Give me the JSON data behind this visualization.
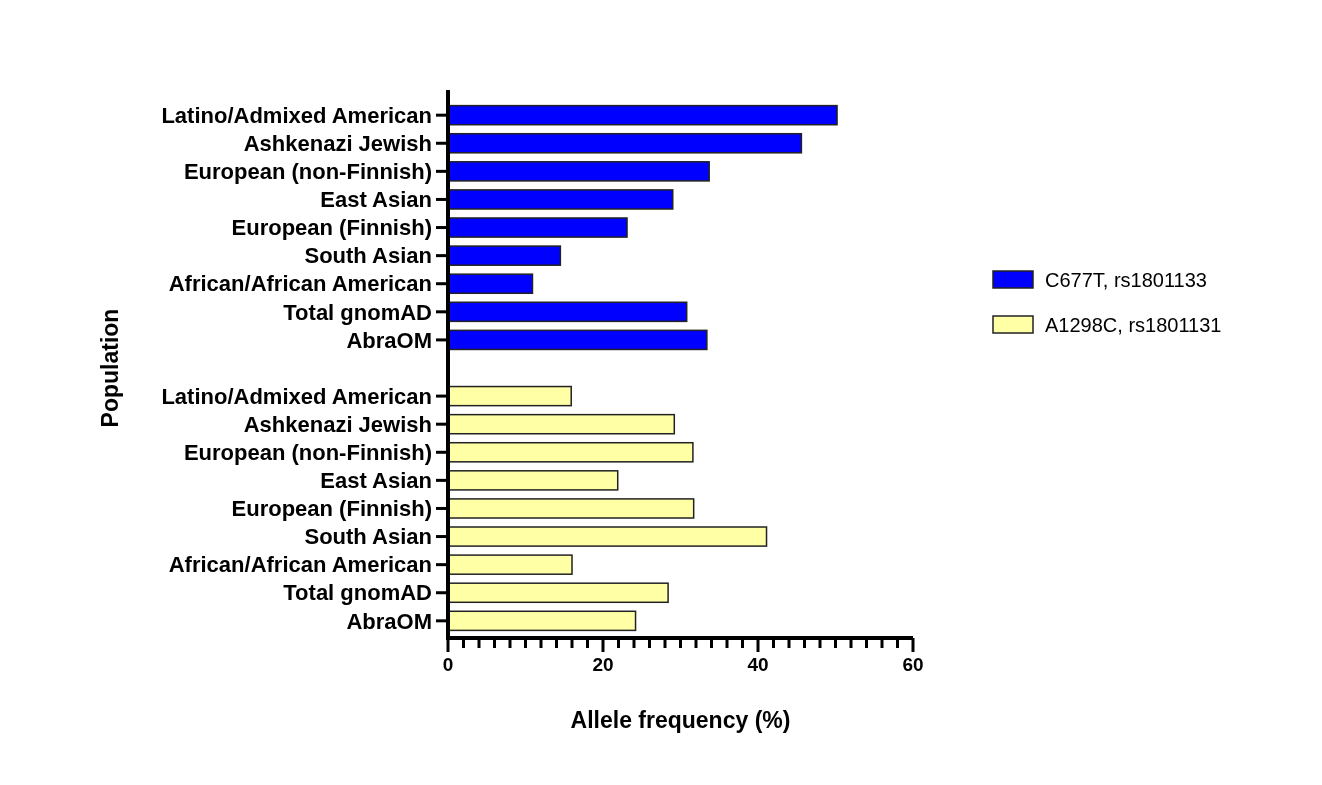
{
  "chart_data": {
    "type": "bar",
    "orientation": "horizontal",
    "categories": [
      "Latino/Admixed American",
      "Ashkenazi Jewish",
      "European (non-Finnish)",
      "East Asian",
      "European (Finnish)",
      "South Asian",
      "African/African American",
      "Total gnomAD",
      "AbraOM",
      null,
      "Latino/Admixed American",
      "Ashkenazi Jewish",
      "European (non-Finnish)",
      "East Asian",
      "European (Finnish)",
      "South Asian",
      "African/African American",
      "Total gnomAD",
      "AbraOM"
    ],
    "series": [
      {
        "name": "C677T, rs1801133",
        "color": "#0000ff",
        "values": [
          50.2,
          45.6,
          33.7,
          29.0,
          23.1,
          14.5,
          10.9,
          30.8,
          33.4,
          null,
          null,
          null,
          null,
          null,
          null,
          null,
          null,
          null,
          null
        ]
      },
      {
        "name": "A1298C, rs1801131",
        "color": "#ffffa6",
        "values": [
          null,
          null,
          null,
          null,
          null,
          null,
          null,
          null,
          null,
          null,
          15.9,
          29.2,
          31.6,
          21.9,
          31.7,
          41.1,
          16.0,
          28.4,
          24.2
        ]
      }
    ],
    "xlabel": "Allele frequency (%)",
    "ylabel": "Population",
    "xlim": [
      0,
      60
    ],
    "xticks": [
      0,
      {
        "value": 2,
        "label": null
      },
      {
        "value": 4,
        "label": null
      },
      {
        "value": 6,
        "label": null
      },
      {
        "value": 8,
        "label": null
      },
      {
        "value": 10,
        "label": null
      },
      {
        "value": 12,
        "label": null
      },
      {
        "value": 14,
        "label": null
      },
      {
        "value": 16,
        "label": null
      },
      {
        "value": 18,
        "label": null
      },
      20,
      {
        "value": 22,
        "label": null
      },
      {
        "value": 24,
        "label": null
      },
      {
        "value": 26,
        "label": null
      },
      {
        "value": 28,
        "label": null
      },
      {
        "value": 30,
        "label": null
      },
      {
        "value": 32,
        "label": null
      },
      {
        "value": 34,
        "label": null
      },
      {
        "value": 36,
        "label": null
      },
      {
        "value": 38,
        "label": null
      },
      40,
      {
        "value": 42,
        "label": null
      },
      {
        "value": 44,
        "label": null
      },
      {
        "value": 46,
        "label": null
      },
      {
        "value": 48,
        "label": null
      },
      {
        "value": 50,
        "label": null
      },
      {
        "value": 52,
        "label": null
      },
      {
        "value": 54,
        "label": null
      },
      {
        "value": 56,
        "label": null
      },
      {
        "value": 58,
        "label": null
      },
      60
    ],
    "grid": false,
    "legend": "right"
  }
}
